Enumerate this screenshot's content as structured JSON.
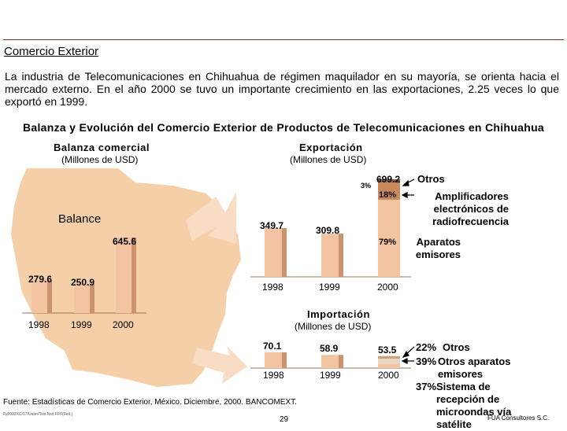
{
  "page": {
    "title": "Comercio Exterior",
    "intro": "La industria de Telecomunicaciones en Chihuahua de régimen maquilador en su mayoría, se orienta hacia el mercado externo. En el año 2000 se tuvo un importante crecimiento en las exportaciones, 2.25 veces lo que exportó en 1999.",
    "subtitle": "Balanza y Evolución del Comercio Exterior de Productos de Telecomunicaciones en Chihuahua",
    "footer": "Fuente: Estadísticas de Comercio Exterior, México. Diciembre, 2000. BANCOMEXT.",
    "file_ref": "Fy2002/02/17/Uater/Tsis.Nsd FFF(Fed.)",
    "page_number": "29",
    "credit": "FUA Consultores S.C."
  },
  "colors": {
    "bar_fill": "#f3c4a2",
    "bar_dark": "#7a3a12",
    "map_fill": "#f5cfa8",
    "arrow_fill": "#f8dcc4",
    "top_line": "#8a2a2a"
  },
  "chart_data": [
    {
      "id": "balanza",
      "type": "bar",
      "title": "Balanza comercial",
      "unit": "(Millones de USD)",
      "label": "Balance",
      "categories": [
        "1998",
        "1999",
        "2000"
      ],
      "values": [
        279.6,
        250.9,
        645.6
      ],
      "value_labels": [
        "279.6",
        "250.9",
        "645.6"
      ],
      "ylim": [
        0,
        700
      ]
    },
    {
      "id": "exportacion",
      "type": "bar",
      "title": "Exportación",
      "unit": "(Millones de USD)",
      "categories": [
        "1998",
        "1999",
        "2000"
      ],
      "values": [
        349.7,
        309.8,
        699.2
      ],
      "value_labels": [
        "349.7",
        "309.8",
        "699.2"
      ],
      "ylim": [
        0,
        760
      ],
      "composition_2000": [
        {
          "pct": "79%",
          "share": 0.79,
          "label": "Aparatos emisores"
        },
        {
          "pct": "18%",
          "share": 0.18,
          "label": "Amplificadores electrónicos de radiofrecuencia"
        },
        {
          "pct": "3%",
          "share": 0.03,
          "label": "Otros"
        }
      ]
    },
    {
      "id": "importacion",
      "type": "bar",
      "title": "Importación",
      "unit": "(Millones de USD)",
      "categories": [
        "1998",
        "1999",
        "2000"
      ],
      "values": [
        70.1,
        58.9,
        53.5
      ],
      "value_labels": [
        "70.1",
        "58.9",
        "53.5"
      ],
      "ylim": [
        0,
        80
      ],
      "composition_2000": [
        {
          "pct": "22%",
          "share": 0.22,
          "label": "Otros"
        },
        {
          "pct": "39%",
          "share": 0.39,
          "label": "Otros aparatos emisores"
        },
        {
          "pct": "37%",
          "share": 0.37,
          "label": "Sistema de recepción de microondas vía satélite"
        }
      ]
    }
  ]
}
